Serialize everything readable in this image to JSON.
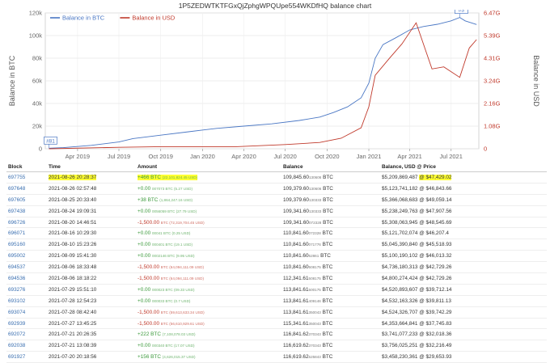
{
  "title": "1P5ZEDWTKTFGxQjZphgWPQUpe554WKDfHQ balance chart",
  "chart_data": {
    "type": "line",
    "series": [
      {
        "name": "Balance in BTC",
        "color": "#4a77c4",
        "axis": "left",
        "points": [
          [
            "2019-01-28",
            500
          ],
          [
            "2019-03-01",
            1000
          ],
          [
            "2019-05-01",
            3000
          ],
          [
            "2019-07-01",
            6000
          ],
          [
            "2019-08-01",
            9000
          ],
          [
            "2019-10-01",
            12000
          ],
          [
            "2019-12-01",
            15000
          ],
          [
            "2020-02-01",
            18000
          ],
          [
            "2020-04-01",
            20000
          ],
          [
            "2020-06-01",
            22000
          ],
          [
            "2020-08-01",
            25000
          ],
          [
            "2020-09-15",
            28000
          ],
          [
            "2020-10-15",
            32000
          ],
          [
            "2020-11-15",
            37000
          ],
          [
            "2020-12-15",
            45000
          ],
          [
            "2021-01-01",
            58000
          ],
          [
            "2021-01-15",
            80000
          ],
          [
            "2021-02-01",
            92000
          ],
          [
            "2021-03-01",
            98000
          ],
          [
            "2021-04-01",
            105000
          ],
          [
            "2021-05-01",
            108000
          ],
          [
            "2021-06-01",
            110000
          ],
          [
            "2021-07-01",
            113000
          ],
          [
            "2021-07-20",
            116000
          ],
          [
            "2021-08-01",
            113000
          ],
          [
            "2021-08-26",
            109800
          ]
        ]
      },
      {
        "name": "Balance in USD",
        "color": "#c0392b",
        "axis": "right",
        "points": [
          [
            "2019-01-28",
            0.001
          ],
          [
            "2019-07-01",
            0.07
          ],
          [
            "2019-10-01",
            0.1
          ],
          [
            "2020-03-15",
            0.1
          ],
          [
            "2020-07-01",
            0.2
          ],
          [
            "2020-09-15",
            0.3
          ],
          [
            "2020-11-01",
            0.5
          ],
          [
            "2020-12-15",
            1.0
          ],
          [
            "2021-01-01",
            2.0
          ],
          [
            "2021-01-15",
            3.5
          ],
          [
            "2021-02-15",
            4.3
          ],
          [
            "2021-03-15",
            5.0
          ],
          [
            "2021-04-15",
            6.0
          ],
          [
            "2021-05-20",
            3.8
          ],
          [
            "2021-06-15",
            3.9
          ],
          [
            "2021-07-20",
            3.4
          ],
          [
            "2021-08-10",
            4.8
          ],
          [
            "2021-08-26",
            5.2
          ]
        ]
      }
    ],
    "left_axis": {
      "label": "Balance in BTC",
      "ticks": [
        "0",
        "20k",
        "40k",
        "60k",
        "80k",
        "100k",
        "120k"
      ],
      "range": [
        0,
        120000
      ]
    },
    "right_axis": {
      "label": "Balance in USD",
      "ticks": [
        "0",
        "1.08G",
        "2.16G",
        "3.24G",
        "4.31G",
        "5.39G",
        "6.47G"
      ],
      "range": [
        0,
        6.47
      ]
    },
    "x_ticks": [
      [
        "2019-04-01",
        "Apr 2019"
      ],
      [
        "2019-07-01",
        "Jul 2019"
      ],
      [
        "2019-10-01",
        "Oct 2019"
      ],
      [
        "2020-01-01",
        "Jan 2020"
      ],
      [
        "2020-04-01",
        "Apr 2020"
      ],
      [
        "2020-07-01",
        "Jul 2020"
      ],
      [
        "2020-10-01",
        "Oct 2020"
      ],
      [
        "2021-01-01",
        "Jan 2021"
      ],
      [
        "2021-04-01",
        "Apr 2021"
      ],
      [
        "2021-07-01",
        "Jul 2021"
      ]
    ],
    "x_range": [
      "2019-01-20",
      "2021-08-31"
    ],
    "annotations": [
      {
        "label": "#81",
        "date": "2019-01-28",
        "value": 500
      },
      {
        "label": "#3",
        "date": "2021-07-20",
        "value": 116000
      }
    ],
    "legend": "top-left",
    "grid": true
  },
  "table": {
    "headers": {
      "block": "Block",
      "time": "Time",
      "amount": "Amount",
      "balance": "Balance",
      "usd": "Balance, USD @ Price"
    },
    "rows": [
      {
        "block": "697755",
        "time": "2021-08-26 20:28:37",
        "amount": "+466 BTC",
        "amount_usd": "(22,101,824.45 USD)",
        "balance": "109,845.60",
        "balance_frac": "130606",
        "usd": "$5,209,869,487",
        "price": "@ $47,429.02",
        "sign": "pos",
        "highlight": true
      },
      {
        "block": "697648",
        "time": "2021-08-26 02:57:48",
        "amount": "+0.00",
        "amount_usd": "007073 BTC (5.27 USD)",
        "balance": "109,379.60",
        "balance_frac": "130606",
        "usd": "$5,123,741,182",
        "price": "@ $46,843.66",
        "sign": "pos",
        "highlight": false
      },
      {
        "block": "697605",
        "time": "2021-08-25 20:33:40",
        "amount": "+38 BTC",
        "amount_usd": "(1,864,247.16 USD)",
        "balance": "109,379.60",
        "balance_frac": "130333",
        "usd": "$5,366,068,683",
        "price": "@ $49,059.14",
        "sign": "pos",
        "highlight": false
      },
      {
        "block": "697438",
        "time": "2021-08-24 19:09:31",
        "amount": "+0.00",
        "amount_usd": "0056059 BTC (27.79 USD)",
        "balance": "109,341.60",
        "balance_frac": "130333",
        "usd": "$5,238,249,763",
        "price": "@ $47,907.56",
        "sign": "pos",
        "highlight": false
      },
      {
        "block": "696726",
        "time": "2021-08-20 14:46:51",
        "amount": "-1,500.00",
        "amount_usd": "BTC (72,319,704.45 USD)",
        "balance": "109,341.60",
        "balance_frac": "072328",
        "usd": "$5,308,063,945",
        "price": "@ $48,545.69",
        "sign": "neg",
        "highlight": false
      },
      {
        "block": "696071",
        "time": "2021-08-16 10:29:30",
        "amount": "+0.00",
        "amount_usd": "00041 BTC (0.25 USD)",
        "balance": "110,841.60",
        "balance_frac": "072328",
        "usd": "$5,121,702,074",
        "price": "@ $46,207.4",
        "sign": "pos",
        "highlight": false
      },
      {
        "block": "695160",
        "time": "2021-08-10 15:23:26",
        "amount": "+0.00",
        "amount_usd": "000401 BTC (19.1 USD)",
        "balance": "110,841.60",
        "balance_frac": "071776",
        "usd": "$5,045,390,840",
        "price": "@ $45,518.93",
        "sign": "pos",
        "highlight": false
      },
      {
        "block": "695002",
        "time": "2021-08-09 15:41:30",
        "amount": "+0.00",
        "amount_usd": "0002146 BTC (9.95 USD)",
        "balance": "110,841.60",
        "balance_frac": "52861",
        "usd": "$5,100,190,102",
        "price": "@ $46,013.32",
        "sign": "pos",
        "highlight": false
      },
      {
        "block": "694537",
        "time": "2021-08-06 18:33:48",
        "amount": "-1,500.00",
        "amount_usd": "BTC (64,094,111.09 USD)",
        "balance": "110,841.60",
        "balance_frac": "508175",
        "usd": "$4,736,180,313",
        "price": "@ $42,729.26",
        "sign": "neg",
        "highlight": false
      },
      {
        "block": "694536",
        "time": "2021-08-06 18:18:22",
        "amount": "-1,500.00",
        "amount_usd": "BTC (64,094,111.09 USD)",
        "balance": "112,341.61",
        "balance_frac": "508175",
        "usd": "$4,800,274,424",
        "price": "@ $42,729.26",
        "sign": "neg",
        "highlight": false
      },
      {
        "block": "693276",
        "time": "2021-07-29 15:51:10",
        "amount": "+0.00",
        "amount_usd": "000023 BTC (09.33 USD)",
        "balance": "113,841.61",
        "balance_frac": "500175",
        "usd": "$4,520,893,607",
        "price": "@ $39,712.14",
        "sign": "pos",
        "highlight": false
      },
      {
        "block": "693102",
        "time": "2021-07-28 12:54:23",
        "amount": "+0.00",
        "amount_usd": "000033 BTC (0.7 USD)",
        "balance": "113,841.61",
        "balance_frac": "409146",
        "usd": "$4,532,163,326",
        "price": "@ $39,811.13",
        "sign": "pos",
        "highlight": false
      },
      {
        "block": "693074",
        "time": "2021-07-28 08:42:40",
        "amount": "-1,500.00",
        "amount_usd": "BTC (59,613,633.34 USD)",
        "balance": "113,841.61",
        "balance_frac": "350043",
        "usd": "$4,524,326,707",
        "price": "@ $39,742.29",
        "sign": "neg",
        "highlight": false
      },
      {
        "block": "692939",
        "time": "2021-07-27 13:45:25",
        "amount": "-1,500.00",
        "amount_usd": "BTC (56,610,929.61 USD)",
        "balance": "115,341.61",
        "balance_frac": "350043",
        "usd": "$4,353,664,841",
        "price": "@ $37,745.83",
        "sign": "neg",
        "highlight": false
      },
      {
        "block": "692072",
        "time": "2021-07-21 20:26:35",
        "amount": "+222 BTC",
        "amount_usd": "(7,108,078.03 USD)",
        "balance": "116,841.62",
        "balance_frac": "370343",
        "usd": "$3,741,077,233",
        "price": "@ $32,018.36",
        "sign": "pos",
        "highlight": false
      },
      {
        "block": "692038",
        "time": "2021-07-21 13:08:39",
        "amount": "+0.00",
        "amount_usd": "000340 BTC (17.07 USD)",
        "balance": "116,619.62",
        "balance_frac": "370343",
        "usd": "$3,756,025,251",
        "price": "@ $32,216.49",
        "sign": "pos",
        "highlight": false
      },
      {
        "block": "691927",
        "time": "2021-07-20 20:18:56",
        "amount": "+156 BTC",
        "amount_usd": "(4,626,015.37 USD)",
        "balance": "116,619.62",
        "balance_frac": "525843",
        "usd": "$3,458,230,361",
        "price": "@ $29,653.93",
        "sign": "pos",
        "highlight": false
      }
    ]
  }
}
